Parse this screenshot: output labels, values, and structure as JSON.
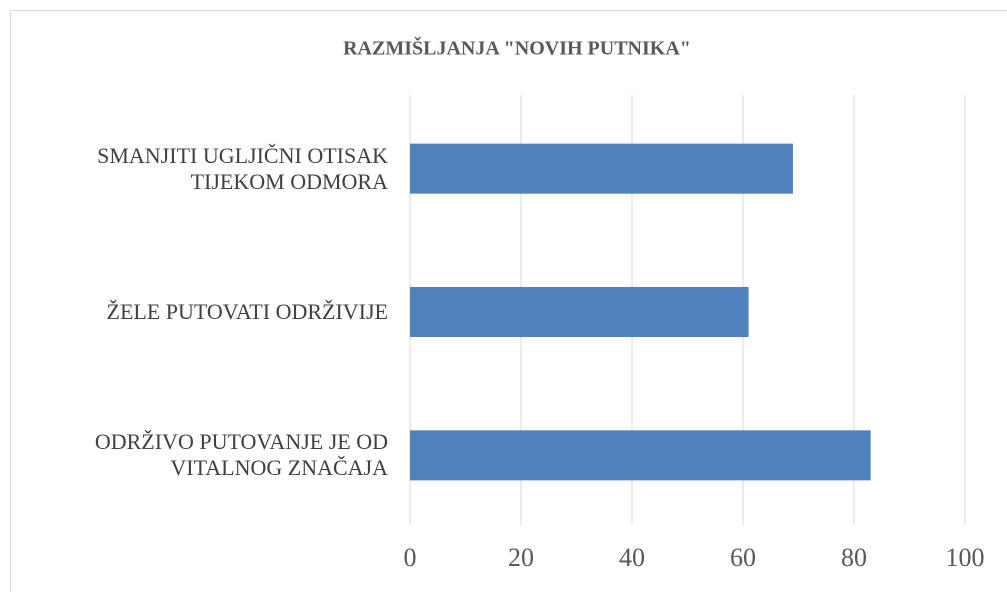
{
  "chart_data": {
    "type": "bar",
    "orientation": "horizontal",
    "title": "RAZMIŠLJANJA \"NOVIH PUTNIKA\"",
    "categories": [
      "SMANJITI UGLJIČNI OTISAK TIJEKOM ODMORA",
      "ŽELE PUTOVATI ODRŽIVIJE",
      "ODRŽIVO PUTOVANJE JE OD VITALNOG ZNAČAJA"
    ],
    "values": [
      69,
      61,
      83
    ],
    "color": "#4f81bd",
    "xlim": [
      0,
      100
    ],
    "xticks": [
      0,
      20,
      40,
      60,
      80,
      100
    ],
    "grid": true
  }
}
